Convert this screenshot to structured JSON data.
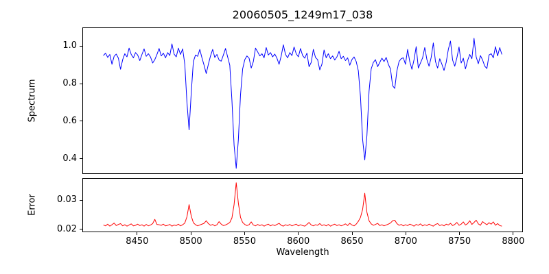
{
  "figure": {
    "background": "#ffffff",
    "text_color": "#000000",
    "spine_color": "#000000"
  },
  "chart_data": [
    {
      "type": "line",
      "title": "20060505_1249m17_038",
      "ylabel": "Spectrum",
      "xlabel": "",
      "grid": false,
      "legend": null,
      "xlim": [
        8399,
        8809
      ],
      "ylim": [
        0.318,
        1.1
      ],
      "yticks": [
        0.4,
        0.6,
        0.8,
        1.0
      ],
      "ytick_labels": [
        "0.4",
        "0.6",
        "0.8",
        "1.0"
      ],
      "notable_features": "normalized stellar spectrum, Ca II triplet absorption lines near 8498, 8542, 8662 with minima 0.55, 0.345, 0.39; weaker lines near 8514 and 8689",
      "series": [
        {
          "name": "spectrum",
          "color": "#0000ff",
          "x_start": 8418,
          "x_step": 2,
          "values": [
            0.952,
            0.965,
            0.942,
            0.958,
            0.905,
            0.948,
            0.96,
            0.938,
            0.878,
            0.93,
            0.962,
            0.945,
            0.992,
            0.958,
            0.94,
            0.968,
            0.955,
            0.925,
            0.958,
            0.988,
            0.948,
            0.962,
            0.944,
            0.912,
            0.93,
            0.958,
            0.99,
            0.95,
            0.965,
            0.94,
            0.968,
            0.952,
            1.015,
            0.96,
            0.945,
            0.992,
            0.958,
            0.988,
            0.905,
            0.7,
            0.552,
            0.75,
            0.92,
            0.955,
            0.948,
            0.985,
            0.94,
            0.9,
            0.855,
            0.905,
            0.95,
            0.985,
            0.942,
            0.958,
            0.928,
            0.922,
            0.955,
            0.99,
            0.945,
            0.9,
            0.71,
            0.47,
            0.345,
            0.5,
            0.74,
            0.88,
            0.93,
            0.95,
            0.938,
            0.885,
            0.92,
            0.992,
            0.972,
            0.95,
            0.962,
            0.94,
            0.995,
            0.955,
            0.968,
            0.945,
            0.96,
            0.938,
            0.905,
            0.95,
            1.01,
            0.958,
            0.94,
            0.968,
            0.952,
            0.998,
            0.962,
            0.945,
            0.99,
            0.952,
            0.938,
            0.965,
            0.892,
            0.915,
            0.985,
            0.942,
            0.93,
            0.875,
            0.905,
            0.982,
            0.94,
            0.962,
            0.935,
            0.95,
            0.928,
            0.945,
            0.975,
            0.935,
            0.948,
            0.925,
            0.94,
            0.9,
            0.93,
            0.945,
            0.92,
            0.87,
            0.73,
            0.5,
            0.39,
            0.52,
            0.76,
            0.88,
            0.915,
            0.93,
            0.892,
            0.915,
            0.938,
            0.92,
            0.942,
            0.905,
            0.88,
            0.79,
            0.775,
            0.87,
            0.92,
            0.935,
            0.94,
            0.905,
            0.985,
            0.92,
            0.878,
            0.93,
            1.0,
            0.885,
            0.912,
            0.94,
            0.995,
            0.93,
            0.895,
            0.942,
            1.02,
            0.92,
            0.885,
            0.935,
            0.905,
            0.872,
            0.915,
            0.985,
            1.03,
            0.928,
            0.895,
            0.94,
            0.998,
            0.912,
            0.938,
            0.88,
            0.925,
            0.958,
            0.935,
            1.045,
            0.945,
            0.908,
            0.952,
            0.928,
            0.895,
            0.882,
            0.955,
            0.962,
            0.94,
            1.0,
            0.95,
            0.995,
            0.958
          ]
        }
      ]
    },
    {
      "type": "line",
      "title": "",
      "ylabel": "Error",
      "xlabel": "Wavelength",
      "grid": false,
      "legend": null,
      "xlim": [
        8399,
        8809
      ],
      "ylim": [
        0.019,
        0.0376
      ],
      "yticks": [
        0.02,
        0.03
      ],
      "ytick_labels": [
        "0.02",
        "0.03"
      ],
      "xticks": [
        8450,
        8500,
        8550,
        8600,
        8650,
        8700,
        8750,
        8800
      ],
      "xtick_labels": [
        "8450",
        "8500",
        "8550",
        "8600",
        "8650",
        "8700",
        "8750",
        "8800"
      ],
      "notable_features": "error spectrum, baseline ~0.021 with peaks at 8498 (0.0285), 8542 (0.0362), 8662 (0.0325)",
      "series": [
        {
          "name": "error",
          "color": "#ff0000",
          "x_start": 8418,
          "x_step": 2,
          "values": [
            0.0213,
            0.021,
            0.0216,
            0.0209,
            0.0214,
            0.022,
            0.0211,
            0.0215,
            0.0218,
            0.021,
            0.0214,
            0.0209,
            0.0213,
            0.0217,
            0.021,
            0.0212,
            0.0216,
            0.0211,
            0.0214,
            0.0209,
            0.0215,
            0.021,
            0.0213,
            0.0218,
            0.0233,
            0.0215,
            0.0214,
            0.0212,
            0.0216,
            0.021,
            0.0212,
            0.0215,
            0.0209,
            0.0213,
            0.0211,
            0.0216,
            0.021,
            0.0214,
            0.022,
            0.0242,
            0.0285,
            0.0245,
            0.0221,
            0.0214,
            0.021,
            0.0213,
            0.0216,
            0.0219,
            0.0228,
            0.0218,
            0.0212,
            0.0215,
            0.021,
            0.0214,
            0.0225,
            0.0216,
            0.0211,
            0.0213,
            0.0217,
            0.0222,
            0.0238,
            0.0285,
            0.0362,
            0.029,
            0.024,
            0.0222,
            0.0215,
            0.0211,
            0.0214,
            0.0224,
            0.0213,
            0.021,
            0.0215,
            0.0211,
            0.0214,
            0.0209,
            0.0213,
            0.0216,
            0.021,
            0.0214,
            0.0211,
            0.0215,
            0.0219,
            0.0212,
            0.0209,
            0.0214,
            0.0211,
            0.0215,
            0.021,
            0.0213,
            0.0216,
            0.021,
            0.0214,
            0.0211,
            0.0209,
            0.0215,
            0.0222,
            0.0213,
            0.021,
            0.0214,
            0.0212,
            0.0218,
            0.0211,
            0.0214,
            0.021,
            0.0215,
            0.0209,
            0.0213,
            0.0216,
            0.0211,
            0.0214,
            0.021,
            0.0213,
            0.0217,
            0.0211,
            0.0219,
            0.0213,
            0.021,
            0.0216,
            0.0226,
            0.024,
            0.0268,
            0.0325,
            0.0258,
            0.0228,
            0.0217,
            0.0212,
            0.0215,
            0.0219,
            0.0211,
            0.0214,
            0.021,
            0.0213,
            0.0216,
            0.022,
            0.0228,
            0.023,
            0.0218,
            0.0212,
            0.0215,
            0.021,
            0.0214,
            0.0211,
            0.0216,
            0.0213,
            0.0209,
            0.0215,
            0.0212,
            0.0217,
            0.021,
            0.0214,
            0.0211,
            0.0216,
            0.0212,
            0.0209,
            0.0215,
            0.0218,
            0.0211,
            0.0214,
            0.021,
            0.0216,
            0.0213,
            0.0219,
            0.0211,
            0.0215,
            0.0222,
            0.0212,
            0.0216,
            0.0224,
            0.0213,
            0.0218,
            0.0228,
            0.0215,
            0.0222,
            0.023,
            0.0217,
            0.0212,
            0.0225,
            0.0219,
            0.0214,
            0.0221,
            0.0216,
            0.0224,
            0.0212,
            0.0218,
            0.0211,
            0.0209
          ]
        }
      ]
    }
  ]
}
